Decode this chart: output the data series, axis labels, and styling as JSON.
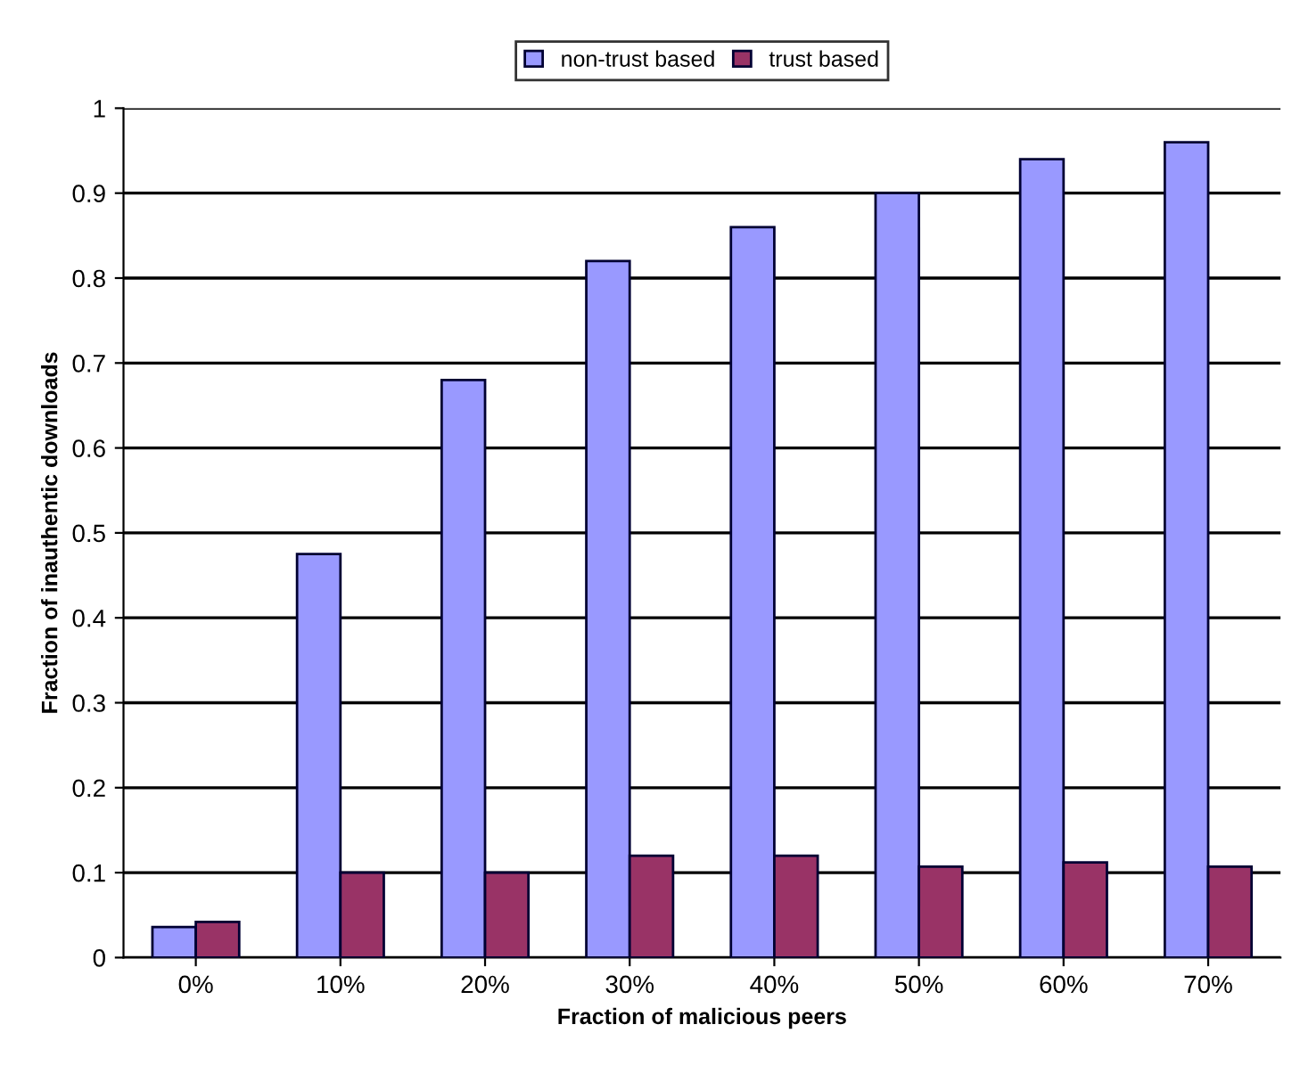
{
  "chart_data": {
    "type": "bar",
    "xlabel": "Fraction of malicious peers",
    "ylabel": "Fraction of inauthentic downloads",
    "categories": [
      "0%",
      "10%",
      "20%",
      "30%",
      "40%",
      "50%",
      "60%",
      "70%"
    ],
    "series": [
      {
        "name": "non-trust based",
        "color": "#9999ff",
        "values": [
          0.036,
          0.475,
          0.68,
          0.82,
          0.86,
          0.9,
          0.94,
          0.96
        ]
      },
      {
        "name": "trust based",
        "color": "#993366",
        "values": [
          0.042,
          0.1,
          0.1,
          0.12,
          0.12,
          0.107,
          0.112,
          0.107
        ]
      }
    ],
    "ylim": [
      0,
      1
    ],
    "yticks": [
      0,
      0.1,
      0.2,
      0.3,
      0.4,
      0.5,
      0.6,
      0.7,
      0.8,
      0.9,
      1
    ],
    "grid": "y",
    "legend": "top"
  }
}
